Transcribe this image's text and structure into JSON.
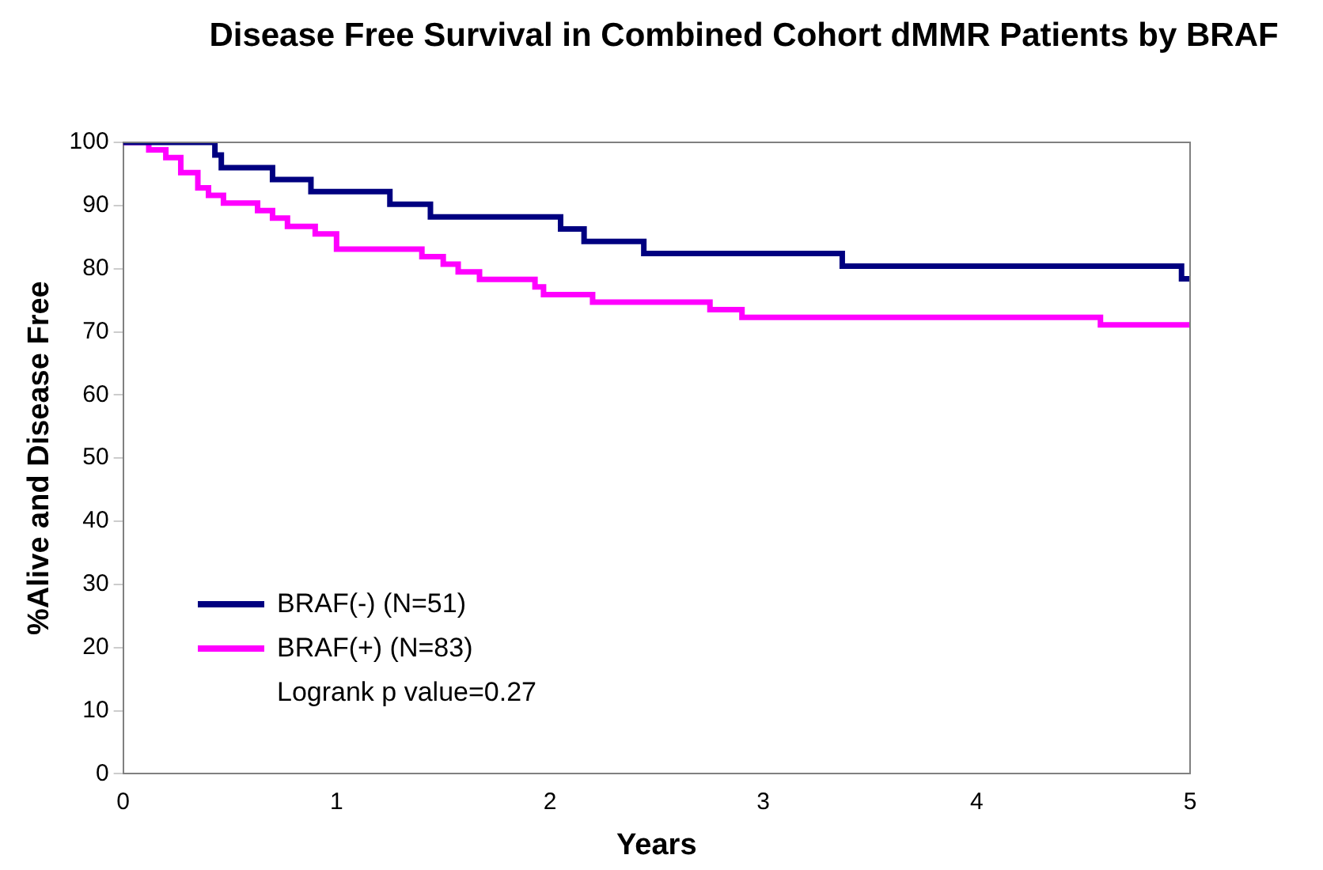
{
  "chart_data": {
    "type": "step",
    "title": "Disease Free Survival in Combined Cohort dMMR Patients by BRAF",
    "xlabel": "Years",
    "ylabel": "%Alive and Disease Free",
    "xlim": [
      0,
      5
    ],
    "xticks": [
      0,
      1,
      2,
      3,
      4,
      5
    ],
    "ylim": [
      0,
      100
    ],
    "yticks": [
      0,
      10,
      20,
      30,
      40,
      50,
      60,
      70,
      80,
      90,
      100
    ],
    "grid": false,
    "legend": "bottom left",
    "marker": "none",
    "line_style": "solid",
    "annotations": [
      "Logrank p value=0.27"
    ],
    "series": [
      {
        "name": "BRAF(-) (N=51)",
        "color": "#000080",
        "x": [
          0,
          0.43,
          0.46,
          0.7,
          0.88,
          1.25,
          1.44,
          2.05,
          2.16,
          2.44,
          3.37,
          4.96,
          5
        ],
        "values": [
          100,
          98,
          96,
          94.1,
          92.2,
          90.2,
          88.2,
          86.3,
          84.3,
          82.4,
          80.4,
          78.4,
          78.4
        ]
      },
      {
        "name": "BRAF(+) (N=83)",
        "color": "#ff00ff",
        "x": [
          0,
          0.12,
          0.2,
          0.27,
          0.35,
          0.4,
          0.47,
          0.63,
          0.7,
          0.77,
          0.9,
          1.0,
          1.4,
          1.5,
          1.57,
          1.67,
          1.93,
          1.97,
          2.2,
          2.75,
          2.9,
          4.58,
          5
        ],
        "values": [
          100,
          98.8,
          97.6,
          95.2,
          92.8,
          91.6,
          90.4,
          89.2,
          88,
          86.7,
          85.5,
          83.1,
          81.9,
          80.7,
          79.5,
          78.3,
          77.1,
          75.9,
          74.7,
          73.5,
          72.3,
          71.1,
          71.1
        ]
      }
    ]
  }
}
